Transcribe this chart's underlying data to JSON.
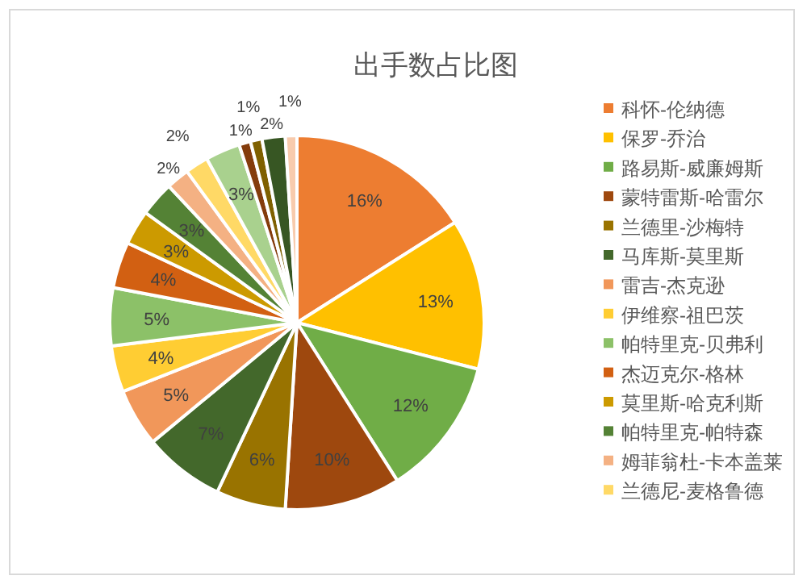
{
  "chart_data": {
    "type": "pie",
    "title": "出手数占比图",
    "categories": [
      "科怀-伦纳德",
      "保罗-乔治",
      "路易斯-威廉姆斯",
      "蒙特雷斯-哈雷尔",
      "兰德里-沙梅特",
      "马库斯-莫里斯",
      "雷吉-杰克逊",
      "伊维察-祖巴茨",
      "帕特里克-贝弗利",
      "杰迈克尔-格林",
      "莫里斯-哈克利斯",
      "帕特里克-帕特森",
      "姆菲翁杜-卡本盖莱",
      "兰德尼-麦格鲁德",
      null,
      null,
      null,
      null,
      null
    ],
    "values": [
      16,
      13,
      12,
      10,
      6,
      7,
      5,
      4,
      5,
      4,
      3,
      3,
      2,
      2,
      3,
      1,
      1,
      2,
      1
    ],
    "colors": [
      "#ed7d31",
      "#ffc000",
      "#70ad47",
      "#9e480e",
      "#997300",
      "#43682b",
      "#f1975a",
      "#ffcd33",
      "#8cc168",
      "#d26012",
      "#cc9a00",
      "#548235",
      "#f4b183",
      "#ffd966",
      "#a9d18e",
      "#843c0c",
      "#7f6000",
      "#375623",
      "#f8cbad"
    ],
    "value_labels": [
      "16%",
      "13%",
      "12%",
      "10%",
      "6%",
      "7%",
      "5%",
      "4%",
      "5%",
      "4%",
      "3%",
      "3%",
      "2%",
      "2%",
      "3%",
      "1%",
      "1%",
      "2%",
      "1%"
    ],
    "legend": "right"
  }
}
